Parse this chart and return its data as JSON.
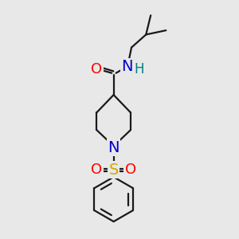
{
  "bg_color": "#e8e8e8",
  "bond_color": "#1a1a1a",
  "O_color": "#ff0000",
  "N_color": "#0000cc",
  "H_color": "#008080",
  "S_color": "#ccaa00",
  "lw": 1.6,
  "font_size_atom": 13,
  "xlim": [
    -2.0,
    2.5
  ],
  "ylim": [
    -5.2,
    4.8
  ]
}
